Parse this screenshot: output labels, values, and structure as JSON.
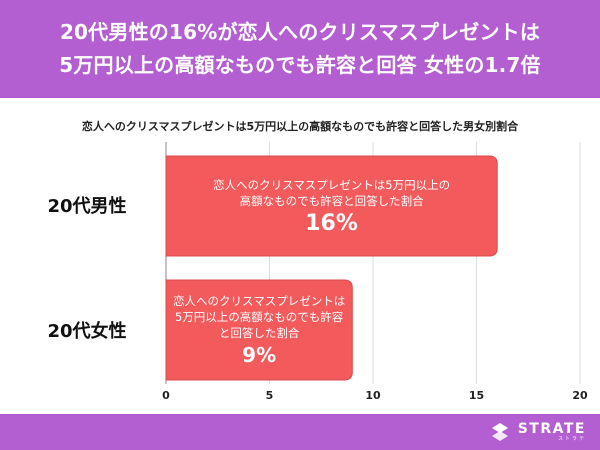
{
  "banner": {
    "line1": "20代男性の16%が恋人へのクリスマスプレゼントは",
    "line2": "5万円以上の高額なものでも許容と回答 女性の1.7倍"
  },
  "footer": {
    "brand": "STRATE",
    "sub": "ストラテ"
  },
  "colors": {
    "banner": "#b45fd1",
    "bar": "#f25a5c",
    "bar_border": "#d84a4c",
    "text": "#222222"
  },
  "chart_data": {
    "type": "bar",
    "orientation": "horizontal",
    "title": "恋人へのクリスマスプレゼントは5万円以上の高額なものでも許容と回答した男女別割合",
    "categories": [
      "20代男性",
      "20代女性"
    ],
    "values": [
      16,
      9
    ],
    "value_labels": [
      "16%",
      "9%"
    ],
    "bar_descriptions": [
      "恋人へのクリスマスプレゼントは5万円以上の\n高額なものでも許容と回答した割合",
      "恋人へのクリスマスプレゼントは\n5万円以上の高額なものでも許容\nと回答した割合"
    ],
    "xticks": [
      "0",
      "5",
      "10",
      "15",
      "20"
    ],
    "xlim": [
      0,
      20
    ],
    "grid": true
  }
}
